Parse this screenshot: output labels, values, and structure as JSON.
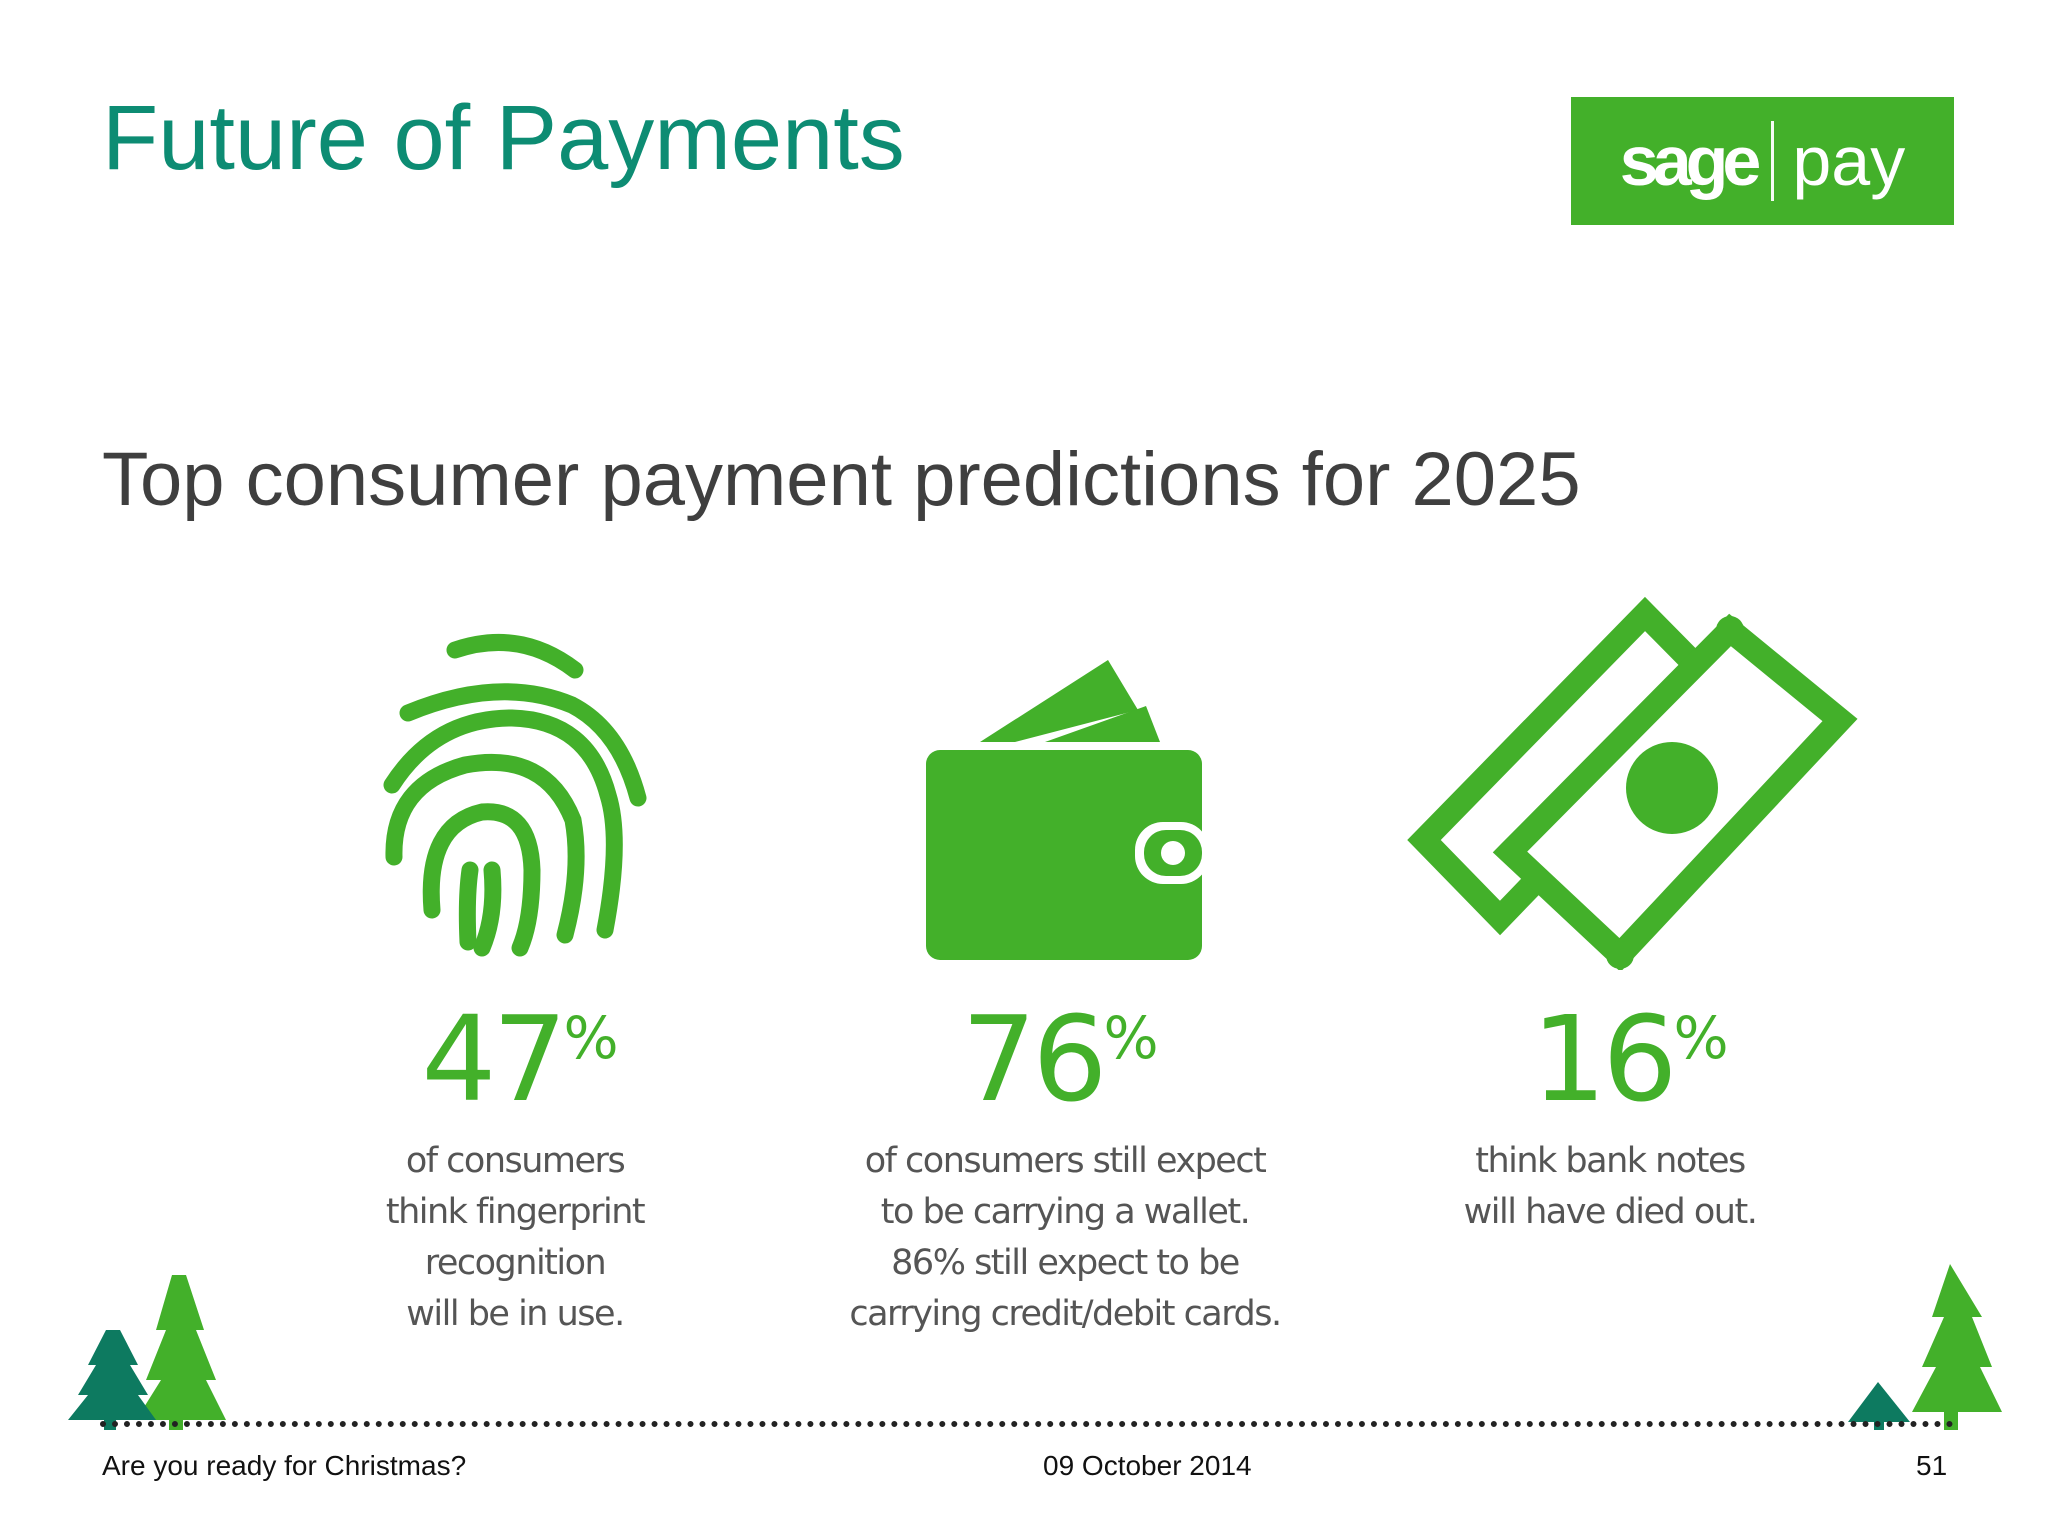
{
  "slide": {
    "title": "Future of Payments",
    "subtitle": "Top consumer payment predictions for 2025"
  },
  "logo": {
    "word1": "sage",
    "word2": "pay"
  },
  "colors": {
    "title": "#0d8c73",
    "accent_green": "#43b02a",
    "subtitle": "#3f3f3f",
    "description": "#555555"
  },
  "stats": [
    {
      "icon": "fingerprint-icon",
      "value": "47",
      "unit": "%",
      "lines": [
        "of consumers",
        "think fingerprint",
        "recognition",
        "will be in use."
      ]
    },
    {
      "icon": "wallet-icon",
      "value": "76",
      "unit": "%",
      "lines": [
        "of consumers still expect",
        "to be carrying a wallet.",
        "86% still expect to be",
        "carrying credit/debit cards."
      ]
    },
    {
      "icon": "banknotes-icon",
      "value": "16",
      "unit": "%",
      "lines": [
        "think bank notes",
        "will have died out."
      ]
    }
  ],
  "footer": {
    "left": "Are you ready for Christmas?",
    "center": "09 October 2014",
    "page_number": "51"
  }
}
